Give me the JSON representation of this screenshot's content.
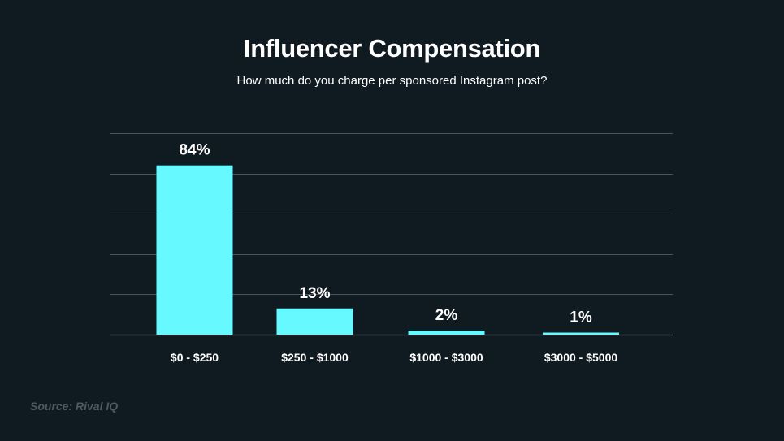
{
  "header": {
    "title": "Influencer Compensation",
    "subtitle": "How much do you charge per sponsored Instagram post?"
  },
  "footer": {
    "source": "Source: Rival IQ"
  },
  "colors": {
    "background": "#101a21",
    "bar": "#66f9ff",
    "text": "#ffffff",
    "gridline": "#4a545b",
    "source_text": "#4d5a63"
  },
  "chart_data": {
    "type": "bar",
    "title": "Influencer Compensation",
    "subtitle": "How much do you charge per sponsored Instagram post?",
    "categories": [
      "$0 - $250",
      "$250 - $1000",
      "$1000 - $3000",
      "$3000 - $5000"
    ],
    "values": [
      84,
      13,
      2,
      1
    ],
    "data_labels": [
      "84%",
      "13%",
      "2%",
      "1%"
    ],
    "unit": "%",
    "xlabel": "",
    "ylabel": "",
    "ylim": [
      0,
      100
    ],
    "gridlines": [
      0,
      20,
      40,
      60,
      80,
      100
    ],
    "grid": true,
    "legend": "none"
  }
}
